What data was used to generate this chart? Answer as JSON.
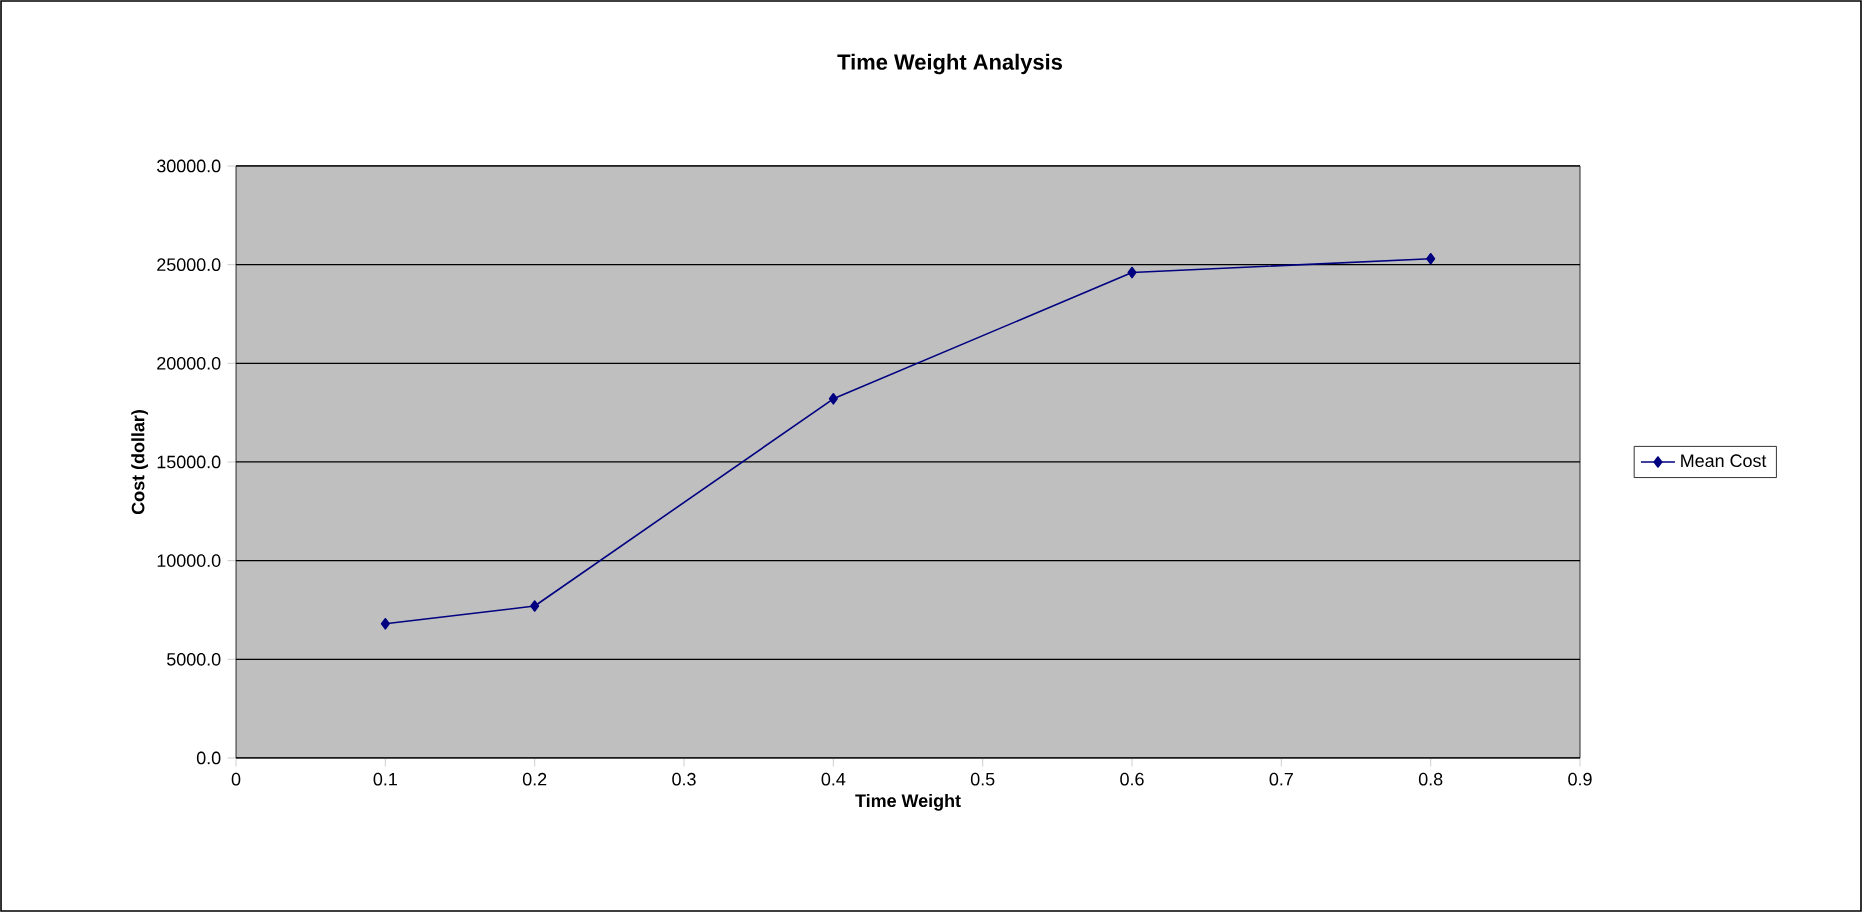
{
  "chart_data": {
    "type": "line",
    "title": "Time Weight Analysis",
    "xlabel": "Time Weight",
    "ylabel": "Cost (dollar)",
    "x": [
      0.1,
      0.2,
      0.4,
      0.6,
      0.8
    ],
    "series": [
      {
        "name": "Mean Cost",
        "color": "#000080",
        "values": [
          6800,
          7700,
          18200,
          24600,
          25300
        ]
      }
    ],
    "xlim": [
      0,
      0.9
    ],
    "xticks": [
      0,
      0.1,
      0.2,
      0.3,
      0.4,
      0.5,
      0.6,
      0.7,
      0.8,
      0.9
    ],
    "ylim": [
      0,
      30000
    ],
    "yticks": [
      {
        "value": 0,
        "label": "0.0"
      },
      {
        "value": 5000,
        "label": "5000.0"
      },
      {
        "value": 10000,
        "label": "10000.0"
      },
      {
        "value": 15000,
        "label": "15000.0"
      },
      {
        "value": 20000,
        "label": "20000.0"
      },
      {
        "value": 25000,
        "label": "25000.0"
      },
      {
        "value": 30000,
        "label": "30000.0"
      }
    ],
    "grid": "y",
    "legend": "right",
    "marker": "diamond",
    "line_style": "solid"
  }
}
